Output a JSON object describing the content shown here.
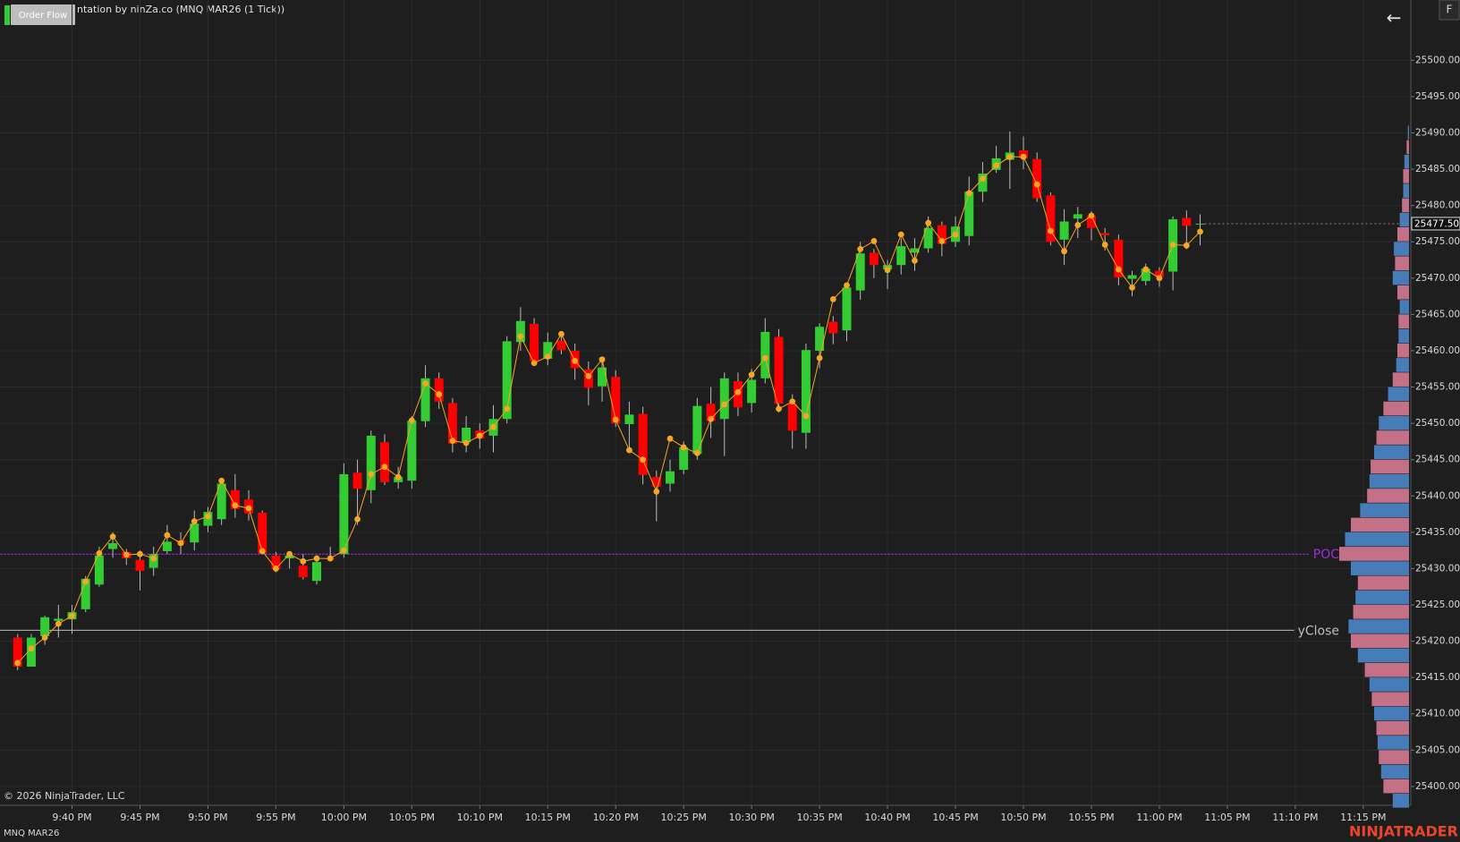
{
  "ui": {
    "button": "Order Flow",
    "f_button": "F",
    "back": "←",
    "copyright": "© 2026 NinjaTrader, LLC",
    "instrument": "MNQ MAR26",
    "logo": "NINJATRADER"
  },
  "chart_data": {
    "type": "candlestick",
    "title": "ntation by ninZa.co (MNQ MAR26 (1 Tick))",
    "xlim": [
      -1.3,
      102.5
    ],
    "ylim": [
      25397.4,
      25508.3
    ],
    "grid": true,
    "up_color": "#33cc33",
    "down_color": "#ff0000",
    "xticks": [
      {
        "value": 4,
        "label": "9:40 PM"
      },
      {
        "value": 9,
        "label": "9:45 PM"
      },
      {
        "value": 14,
        "label": "9:50 PM"
      },
      {
        "value": 19,
        "label": "9:55 PM"
      },
      {
        "value": 24,
        "label": "10:00 PM"
      },
      {
        "value": 29,
        "label": "10:05 PM"
      },
      {
        "value": 34,
        "label": "10:10 PM"
      },
      {
        "value": 39,
        "label": "10:15 PM"
      },
      {
        "value": 44,
        "label": "10:20 PM"
      },
      {
        "value": 49,
        "label": "10:25 PM"
      },
      {
        "value": 54,
        "label": "10:30 PM"
      },
      {
        "value": 59,
        "label": "10:35 PM"
      },
      {
        "value": 64,
        "label": "10:40 PM"
      },
      {
        "value": 69,
        "label": "10:45 PM"
      },
      {
        "value": 74,
        "label": "10:50 PM"
      },
      {
        "value": 79,
        "label": "10:55 PM"
      },
      {
        "value": 84,
        "label": "11:00 PM"
      },
      {
        "value": 89,
        "label": "11:05 PM"
      },
      {
        "value": 94,
        "label": "11:10 PM"
      },
      {
        "value": 99,
        "label": "11:15 PM"
      }
    ],
    "yticks": [
      {
        "value": 25400,
        "label": "25400.00"
      },
      {
        "value": 25405,
        "label": "25405.00"
      },
      {
        "value": 25410,
        "label": "25410.00"
      },
      {
        "value": 25415,
        "label": "25415.00"
      },
      {
        "value": 25420,
        "label": "25420.00"
      },
      {
        "value": 25425,
        "label": "25425.00"
      },
      {
        "value": 25430,
        "label": "25430.00"
      },
      {
        "value": 25435,
        "label": "25435.00"
      },
      {
        "value": 25440,
        "label": "25440.00"
      },
      {
        "value": 25445,
        "label": "25445.00"
      },
      {
        "value": 25450,
        "label": "25450.00"
      },
      {
        "value": 25455,
        "label": "25455.00"
      },
      {
        "value": 25460,
        "label": "25460.00"
      },
      {
        "value": 25465,
        "label": "25465.00"
      },
      {
        "value": 25470,
        "label": "25470.00"
      },
      {
        "value": 25475,
        "label": "25475.00"
      },
      {
        "value": 25480,
        "label": "25480.00"
      },
      {
        "value": 25485,
        "label": "25485.00"
      },
      {
        "value": 25490,
        "label": "25490.00"
      },
      {
        "value": 25495,
        "label": "25495.00"
      },
      {
        "value": 25500,
        "label": "25500.00"
      }
    ],
    "open": [
      25420.5,
      25416.5,
      25420.7,
      25422.8,
      25423,
      25424.4,
      25427.8,
      25432.7,
      25432.3,
      25431.2,
      25430.1,
      25432.4,
      25433.9,
      25433.6,
      25435.9,
      25436.8,
      25440.8,
      25439.5,
      25437.7,
      25431.8,
      25431.4,
      25430.4,
      25428.3,
      25431.4,
      25432,
      25443.2,
      25440.8,
      25447.4,
      25441.9,
      25442.1,
      25450.3,
      25456.2,
      25452.8,
      25447.4,
      25449,
      25448.3,
      25450.6,
      25461.2,
      25463.7,
      25458.9,
      25461.4,
      25460,
      25457.4,
      25455.1,
      25456.4,
      25449.9,
      25451.3,
      25442.6,
      25441.7,
      25443.6,
      25445.8,
      25452.7,
      25450.6,
      25455.8,
      25452.8,
      25456.2,
      25461.9,
      25452.7,
      25448.7,
      25460,
      25464,
      25462.8,
      25468.3,
      25473.5,
      25471.2,
      25471.8,
      25473.5,
      25474.1,
      25477.3,
      25475,
      25475.8,
      25481.9,
      25484.9,
      25486.3,
      25487.6,
      25486.4,
      25481.4,
      25475.3,
      25478.2,
      25478.6,
      25476.2,
      25475.3,
      25469.9,
      25469.6,
      25471,
      25470.9,
      25478.3,
      25477.5
    ],
    "high": [
      25421,
      25421,
      25423.5,
      25425,
      25425,
      25429,
      25433,
      25435,
      25432.7,
      25432.5,
      25433,
      25436,
      25435,
      25438,
      25438.5,
      25442.5,
      25443,
      25440.8,
      25438,
      25432.3,
      25432.3,
      25432,
      25431.5,
      25433,
      25444.5,
      25445,
      25449,
      25448.5,
      25444,
      25451,
      25458,
      25457,
      25453.5,
      25451,
      25450,
      25452.5,
      25462,
      25466,
      25464.5,
      25462.5,
      25462.5,
      25461,
      25458.5,
      25459,
      25457.3,
      25453,
      25452.3,
      25443.5,
      25445,
      25447.5,
      25453.5,
      25455,
      25457,
      25457,
      25457.5,
      25464.5,
      25463,
      25454,
      25461,
      25463.8,
      25464.8,
      25469.3,
      25475,
      25474,
      25472.5,
      25475.5,
      25475.5,
      25478.5,
      25477.8,
      25478.5,
      25484,
      25486,
      25488.2,
      25490.2,
      25489.5,
      25487.3,
      25481.8,
      25479.5,
      25479.8,
      25479.2,
      25476.9,
      25476,
      25471,
      25472,
      25471.5,
      25478.5,
      25479.3,
      25478.8
    ],
    "low": [
      25416,
      25416.5,
      25419.5,
      25420.5,
      25421,
      25424,
      25427.5,
      25431.5,
      25430.5,
      25427,
      25429,
      25432,
      25432,
      25432.5,
      25435,
      25436,
      25437,
      25436.6,
      25432,
      25429.5,
      25430,
      25428.5,
      25427.8,
      25431,
      25431.5,
      25436,
      25439,
      25441.5,
      25441,
      25441,
      25449.5,
      25452,
      25446,
      25446,
      25446.5,
      25446,
      25450,
      25460,
      25458,
      25458,
      25459.5,
      25456,
      25452.5,
      25453,
      25449.5,
      25446.5,
      25441.6,
      25436.5,
      25440.6,
      25443,
      25445,
      25448,
      25445.5,
      25451,
      25451.5,
      25455.5,
      25451.5,
      25446.5,
      25446.5,
      25457.6,
      25460.9,
      25461.3,
      25467,
      25470,
      25468.5,
      25470.5,
      25471,
      25473.5,
      25473,
      25474.3,
      25474.5,
      25480.5,
      25484.5,
      25482.3,
      25485,
      25480.5,
      25474.5,
      25471.8,
      25475.5,
      25475.2,
      25473.8,
      25469,
      25467.5,
      25469,
      25468.8,
      25468.3,
      25474,
      25474.5
    ],
    "close": [
      25416.5,
      25420.5,
      25423.3,
      25423.1,
      25424,
      25428.6,
      25431.8,
      25433.5,
      25431.4,
      25429.7,
      25432,
      25433.7,
      25433.6,
      25436.2,
      25437.8,
      25441.7,
      25438.2,
      25437.6,
      25432.1,
      25429.9,
      25431.8,
      25428.8,
      25430.9,
      25431.3,
      25443,
      25441,
      25448.3,
      25441.9,
      25442.6,
      25450.4,
      25456.2,
      25453,
      25447.2,
      25449.4,
      25447.9,
      25450.6,
      25461.3,
      25464.1,
      25458.6,
      25461.2,
      25460.1,
      25457.6,
      25454.9,
      25457.7,
      25450,
      25451.2,
      25442.9,
      25441.3,
      25443.4,
      25446.7,
      25452.4,
      25450.3,
      25456.2,
      25452.2,
      25456,
      25462.6,
      25452.7,
      25449,
      25460.1,
      25463.3,
      25462.4,
      25468.7,
      25473.4,
      25471.8,
      25471.8,
      25474.4,
      25474.1,
      25476.9,
      25474.7,
      25477.1,
      25481.9,
      25484.4,
      25486.5,
      25487.3,
      25486.5,
      25481,
      25475,
      25477.8,
      25478.8,
      25476.9,
      25475.9,
      25470.1,
      25470.4,
      25471.3,
      25470.2,
      25478.1,
      25477.2,
      25477.5
    ],
    "overlay": {
      "color": "#f5a623",
      "values": [
        25417,
        25419,
        25420.5,
        25422.4,
        25423.5,
        25428.2,
        25432.1,
        25434.4,
        25431.9,
        25432,
        25431.4,
        25434.6,
        25433.5,
        25436.5,
        25437.2,
        25442.1,
        25438.7,
        25438.3,
        25432.4,
        25430,
        25432,
        25431,
        25431.4,
        25431.4,
        25432.5,
        25436.8,
        25443,
        25444,
        25442.6,
        25450.4,
        25455.5,
        25454,
        25447.6,
        25447.3,
        25448.3,
        25449.5,
        25452,
        25462,
        25458.3,
        25459.2,
        25462.3,
        25458.6,
        25456.5,
        25458.8,
        25450.5,
        25446.3,
        25445,
        25440.6,
        25447.9,
        25446.7,
        25445.9,
        25450.6,
        25452.6,
        25454.3,
        25456.7,
        25459,
        25452,
        25453,
        25451,
        25459,
        25467.1,
        25469,
        25474,
        25475.1,
        25471.1,
        25476,
        25472.4,
        25477.6,
        25475.1,
        25476,
        25481.7,
        25483.7,
        25485.5,
        25486.7,
        25486.7,
        25482.9,
        25476.5,
        25473.7,
        25477.3,
        25478.6,
        25474.6,
        25471.2,
        25468.7,
        25471.2,
        25470,
        25474.6,
        25474.5,
        25476.4
      ]
    },
    "lines": [
      {
        "label": "POC",
        "value": 25432,
        "color": "#9b30d9"
      },
      {
        "label": "yClose",
        "value": 25421.5,
        "color": "#bdbdbd"
      }
    ],
    "last_price": {
      "value": 25477.5,
      "label": "25477.50"
    },
    "profile": {
      "colors": [
        "#4a86c8",
        "#d67a94"
      ],
      "levels": [
        25398,
        25400,
        25402,
        25404,
        25406,
        25408,
        25410,
        25412,
        25414,
        25416,
        25418,
        25420,
        25422,
        25424,
        25426,
        25428,
        25430,
        25432,
        25434,
        25436,
        25438,
        25440,
        25442,
        25444,
        25446,
        25448,
        25450,
        25452,
        25454,
        25456,
        25458,
        25460,
        25462,
        25464,
        25466,
        25468,
        25470,
        25472,
        25474,
        25476,
        25478,
        25480,
        25482,
        25484,
        25486,
        25488,
        25490
      ],
      "volumes": [
        14,
        22,
        24,
        26,
        27,
        28,
        30,
        32,
        34,
        38,
        44,
        50,
        52,
        48,
        46,
        44,
        50,
        60,
        55,
        50,
        42,
        36,
        34,
        33,
        30,
        28,
        26,
        22,
        18,
        14,
        11,
        10,
        9,
        9,
        8,
        10,
        14,
        12,
        13,
        10,
        8,
        6,
        5,
        5,
        4,
        2,
        1
      ]
    }
  }
}
